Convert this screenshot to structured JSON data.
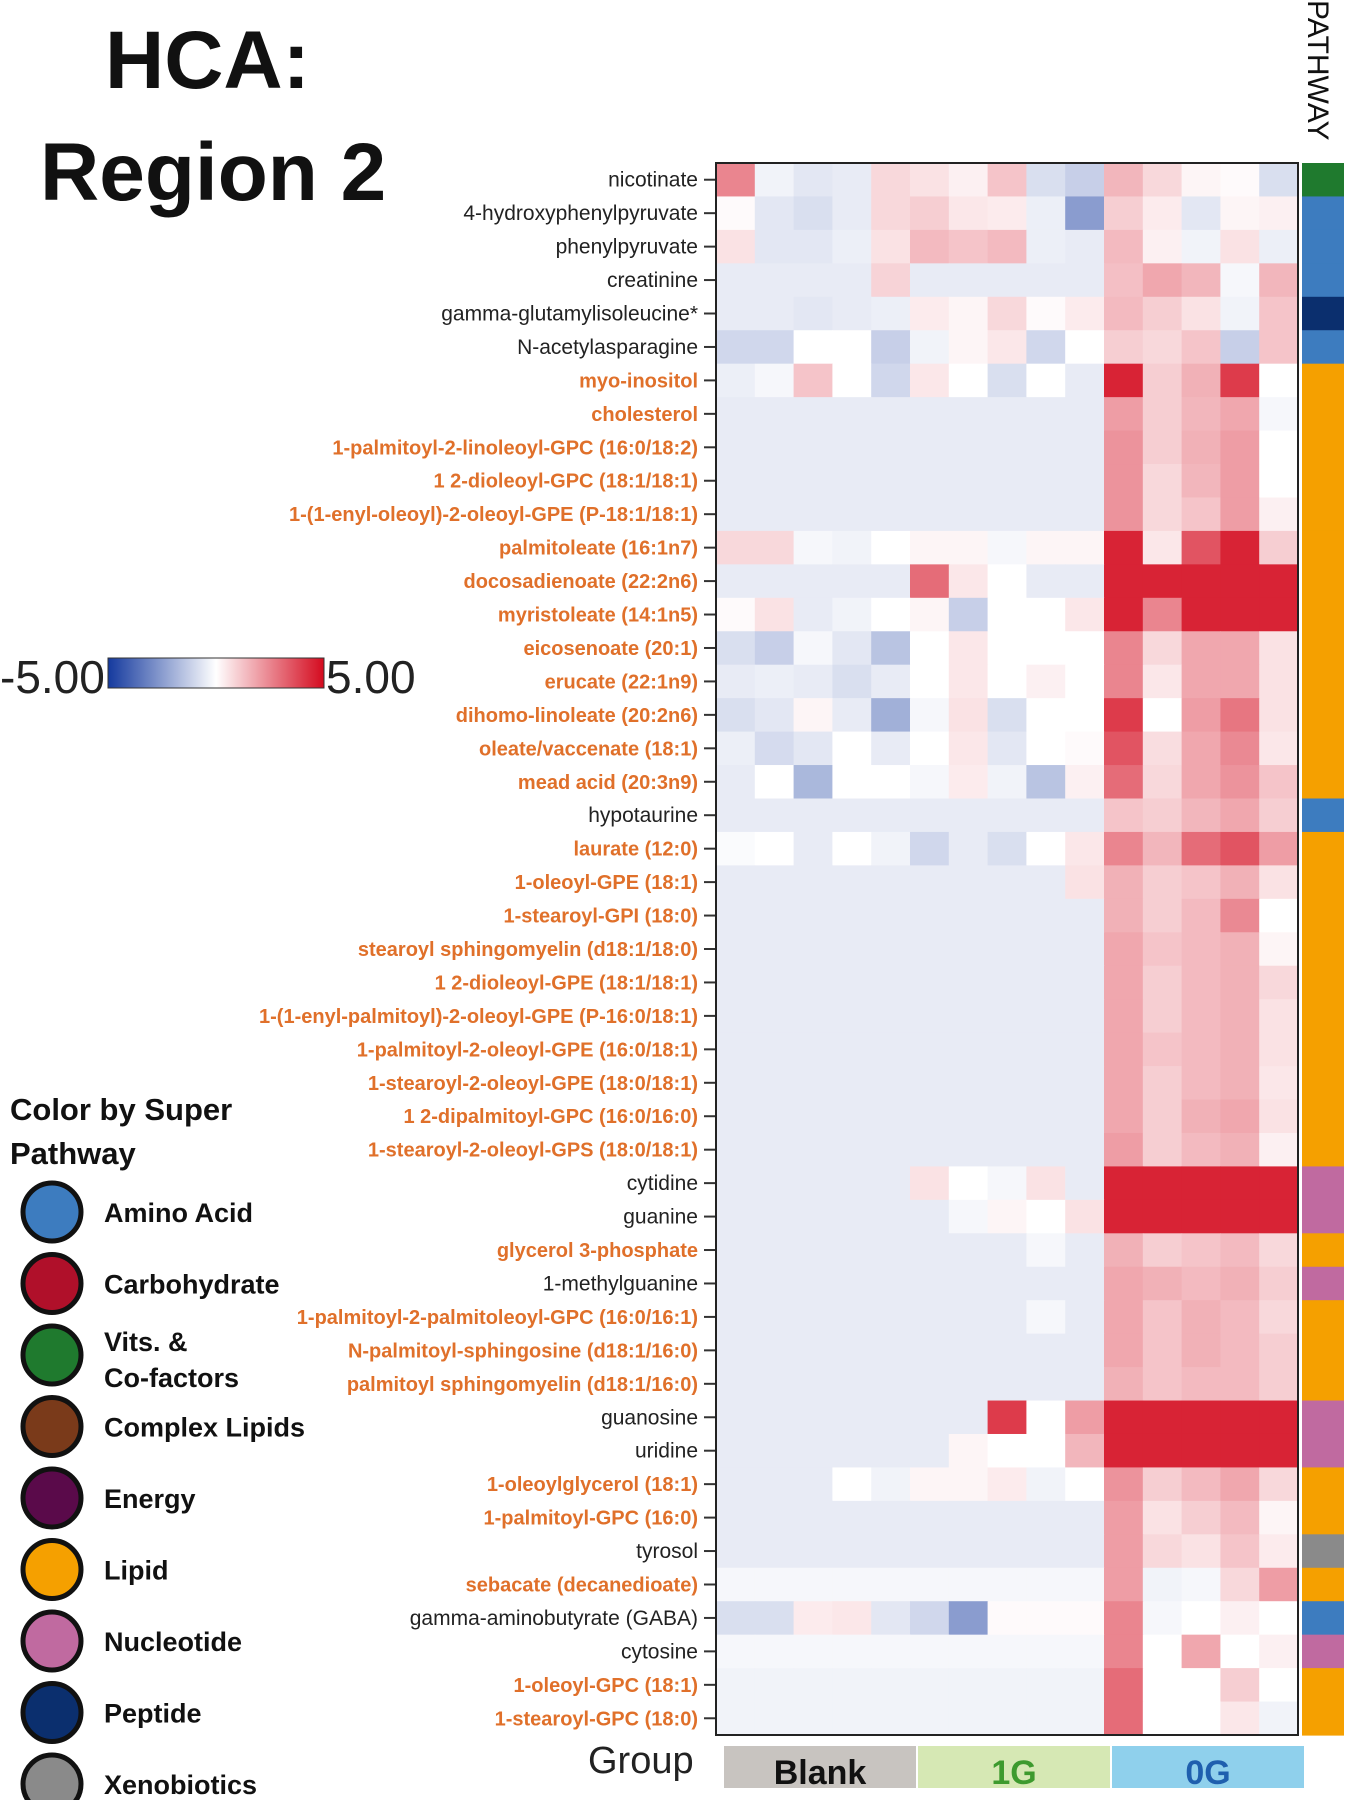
{
  "title_line1": "HCA:",
  "title_line2": "Region 2",
  "pathway_header": "PATHWAY",
  "colorbar": {
    "min_label": "-5.00",
    "max_label": "5.00"
  },
  "legend": {
    "title_line1": "Color by Super",
    "title_line2": "Pathway",
    "items": [
      {
        "label": "Amino Acid",
        "color": "#3d7cbf"
      },
      {
        "label": "Carbohydrate",
        "color": "#b0102a"
      },
      {
        "label": "Vits. &",
        "label2": "Co-factors",
        "color": "#1f7a2e"
      },
      {
        "label": "Complex Lipids",
        "color": "#7a3a1a"
      },
      {
        "label": "Energy",
        "color": "#5a0a4a"
      },
      {
        "label": "Lipid",
        "color": "#f5a000"
      },
      {
        "label": "Nucleotide",
        "color": "#c06aa0"
      },
      {
        "label": "Peptide",
        "color": "#0b2f6e"
      },
      {
        "label": "Xenobiotics",
        "color": "#8a8a8a"
      }
    ]
  },
  "group": {
    "label": "Group",
    "groups": [
      {
        "label": "Blank",
        "color": "#c8c4c0",
        "text_color": "#111111"
      },
      {
        "label": "1G",
        "color": "#d6e8b4",
        "text_color": "#3d9a2e"
      },
      {
        "label": "0G",
        "color": "#8fd0ec",
        "text_color": "#1f5fae"
      }
    ]
  },
  "chart_data": {
    "type": "heatmap",
    "value_range": [
      -5,
      5
    ],
    "columns_per_group": [
      5,
      5,
      5
    ],
    "rows": [
      {
        "label": "nicotinate",
        "pathway": "Vits. & Co-factors",
        "values": [
          2.5,
          -0.3,
          -0.6,
          -0.5,
          0.8,
          0.6,
          0.3,
          1.2,
          -0.8,
          -1.2,
          1.5,
          0.8,
          0.2,
          0.1,
          -0.8
        ]
      },
      {
        "label": "4-hydroxyphenylpyruvate",
        "pathway": "Amino Acid",
        "values": [
          0.1,
          -0.6,
          -0.8,
          -0.5,
          0.8,
          1.0,
          0.5,
          0.4,
          -0.4,
          -2.5,
          1.0,
          0.4,
          -0.6,
          0.2,
          0.3
        ]
      },
      {
        "label": "phenylpyruvate",
        "pathway": "Amino Acid",
        "values": [
          0.6,
          -0.6,
          -0.6,
          -0.4,
          0.6,
          1.4,
          1.2,
          1.4,
          -0.4,
          -0.5,
          1.4,
          0.3,
          -0.3,
          0.6,
          -0.4
        ]
      },
      {
        "label": "creatinine",
        "pathway": "Amino Acid",
        "values": [
          -0.5,
          -0.5,
          -0.5,
          -0.5,
          0.9,
          -0.5,
          -0.5,
          -0.5,
          -0.5,
          -0.5,
          1.3,
          1.8,
          1.5,
          -0.2,
          1.5
        ]
      },
      {
        "label": "gamma-glutamylisoleucine*",
        "pathway": "Peptide",
        "values": [
          -0.5,
          -0.5,
          -0.6,
          -0.5,
          -0.4,
          0.4,
          0.2,
          0.8,
          0.1,
          0.4,
          1.4,
          1.0,
          0.6,
          -0.3,
          1.2
        ]
      },
      {
        "label": "N-acetylasparagine",
        "pathway": "Amino Acid",
        "values": [
          -1.0,
          -1.0,
          0.0,
          0.0,
          -1.2,
          -0.3,
          0.2,
          0.5,
          -1.0,
          0.0,
          1.0,
          0.8,
          1.2,
          -1.2,
          1.2
        ]
      },
      {
        "label": "myo-inositol",
        "pathway": "Lipid",
        "values": [
          -0.4,
          -0.2,
          1.2,
          0.0,
          -1.0,
          0.5,
          0.0,
          -0.8,
          0.0,
          -0.5,
          4.5,
          1.0,
          1.6,
          4.0,
          0.0
        ]
      },
      {
        "label": "cholesterol",
        "pathway": "Lipid",
        "values": [
          -0.5,
          -0.5,
          -0.5,
          -0.5,
          -0.5,
          -0.5,
          -0.5,
          -0.5,
          -0.5,
          -0.5,
          2.0,
          1.0,
          1.5,
          1.8,
          -0.2
        ]
      },
      {
        "label": "1-palmitoyl-2-linoleoyl-GPC (16:0/18:2)",
        "pathway": "Lipid",
        "values": [
          -0.5,
          -0.5,
          -0.5,
          -0.5,
          -0.5,
          -0.5,
          -0.5,
          -0.5,
          -0.5,
          -0.5,
          2.2,
          1.0,
          1.6,
          2.0,
          0.0
        ]
      },
      {
        "label": "1 2-dioleoyl-GPC (18:1/18:1)",
        "pathway": "Lipid",
        "values": [
          -0.5,
          -0.5,
          -0.5,
          -0.5,
          -0.5,
          -0.5,
          -0.5,
          -0.5,
          -0.5,
          -0.5,
          2.2,
          0.8,
          1.5,
          2.0,
          0.0
        ]
      },
      {
        "label": "1-(1-enyl-oleoyl)-2-oleoyl-GPE (P-18:1/18:1)",
        "pathway": "Lipid",
        "values": [
          -0.5,
          -0.5,
          -0.5,
          -0.5,
          -0.5,
          -0.5,
          -0.5,
          -0.5,
          -0.5,
          -0.5,
          2.2,
          0.8,
          1.2,
          2.0,
          0.3
        ]
      },
      {
        "label": "palmitoleate (16:1n7)",
        "pathway": "Lipid",
        "values": [
          0.8,
          0.8,
          -0.2,
          -0.3,
          0.0,
          0.2,
          0.2,
          -0.2,
          0.2,
          0.2,
          4.5,
          0.5,
          3.5,
          4.5,
          1.0
        ]
      },
      {
        "label": "docosadienoate (22:2n6)",
        "pathway": "Lipid",
        "values": [
          -0.5,
          -0.5,
          -0.5,
          -0.5,
          -0.5,
          3.0,
          0.5,
          0.0,
          -0.5,
          -0.5,
          4.5,
          4.5,
          4.5,
          4.5,
          4.5
        ]
      },
      {
        "label": "myristoleate (14:1n5)",
        "pathway": "Lipid",
        "values": [
          0.1,
          0.6,
          -0.5,
          -0.3,
          0.0,
          0.2,
          -1.2,
          0.0,
          0.0,
          0.5,
          4.5,
          2.5,
          4.5,
          4.5,
          4.5
        ]
      },
      {
        "label": "eicosenoate (20:1)",
        "pathway": "Lipid",
        "values": [
          -0.8,
          -1.2,
          -0.2,
          -0.6,
          -1.5,
          0.0,
          0.5,
          0.0,
          0.0,
          0.0,
          2.5,
          0.8,
          1.8,
          1.8,
          0.6
        ]
      },
      {
        "label": "erucate (22:1n9)",
        "pathway": "Lipid",
        "values": [
          -0.5,
          -0.4,
          -0.5,
          -0.8,
          -0.5,
          0.0,
          0.5,
          0.0,
          0.3,
          0.0,
          2.5,
          0.5,
          1.8,
          1.8,
          0.6
        ]
      },
      {
        "label": "dihomo-linoleate (20:2n6)",
        "pathway": "Lipid",
        "values": [
          -0.8,
          -0.6,
          0.2,
          -0.5,
          -2.0,
          -0.2,
          0.6,
          -0.8,
          0.0,
          0.0,
          4.0,
          0.0,
          2.0,
          2.8,
          0.6
        ]
      },
      {
        "label": "oleate/vaccenate (18:1)",
        "pathway": "Lipid",
        "values": [
          -0.4,
          -0.9,
          -0.6,
          0.0,
          -0.5,
          0.0,
          0.5,
          -0.6,
          0.0,
          0.1,
          3.5,
          0.7,
          1.8,
          2.4,
          0.5
        ]
      },
      {
        "label": "mead acid (20:3n9)",
        "pathway": "Lipid",
        "values": [
          -0.5,
          0.0,
          -1.8,
          0.0,
          0.0,
          -0.2,
          0.4,
          -0.3,
          -1.5,
          0.3,
          3.0,
          0.8,
          1.8,
          2.2,
          1.2
        ]
      },
      {
        "label": "hypotaurine",
        "pathway": "Amino Acid",
        "values": [
          -0.5,
          -0.5,
          -0.5,
          -0.5,
          -0.5,
          -0.5,
          -0.5,
          -0.5,
          -0.5,
          -0.5,
          1.2,
          1.0,
          1.5,
          1.8,
          1.0
        ]
      },
      {
        "label": "laurate (12:0)",
        "pathway": "Lipid",
        "values": [
          -0.1,
          0.0,
          -0.5,
          0.0,
          -0.3,
          -1.0,
          -0.5,
          -0.8,
          0.0,
          0.5,
          2.5,
          1.5,
          3.0,
          3.5,
          2.0
        ]
      },
      {
        "label": "1-oleoyl-GPE (18:1)",
        "pathway": "Lipid",
        "values": [
          -0.5,
          -0.5,
          -0.5,
          -0.5,
          -0.5,
          -0.5,
          -0.5,
          -0.5,
          -0.5,
          0.6,
          1.6,
          1.0,
          1.2,
          1.6,
          0.6
        ]
      },
      {
        "label": "1-stearoyl-GPI (18:0)",
        "pathway": "Lipid",
        "values": [
          -0.5,
          -0.5,
          -0.5,
          -0.5,
          -0.5,
          -0.5,
          -0.5,
          -0.5,
          -0.5,
          -0.5,
          1.6,
          1.0,
          1.4,
          2.4,
          0.0
        ]
      },
      {
        "label": "stearoyl sphingomyelin (d18:1/18:0)",
        "pathway": "Lipid",
        "values": [
          -0.5,
          -0.5,
          -0.5,
          -0.5,
          -0.5,
          -0.5,
          -0.5,
          -0.5,
          -0.5,
          -0.5,
          1.8,
          1.2,
          1.4,
          1.6,
          0.2
        ]
      },
      {
        "label": "1 2-dioleoyl-GPE (18:1/18:1)",
        "pathway": "Lipid",
        "values": [
          -0.5,
          -0.5,
          -0.5,
          -0.5,
          -0.5,
          -0.5,
          -0.5,
          -0.5,
          -0.5,
          -0.5,
          1.8,
          1.0,
          1.4,
          1.6,
          0.8
        ]
      },
      {
        "label": "1-(1-enyl-palmitoyl)-2-oleoyl-GPE (P-16:0/18:1)",
        "pathway": "Lipid",
        "values": [
          -0.5,
          -0.5,
          -0.5,
          -0.5,
          -0.5,
          -0.5,
          -0.5,
          -0.5,
          -0.5,
          -0.5,
          1.8,
          1.0,
          1.4,
          1.6,
          0.6
        ]
      },
      {
        "label": "1-palmitoyl-2-oleoyl-GPE (16:0/18:1)",
        "pathway": "Lipid",
        "values": [
          -0.5,
          -0.5,
          -0.5,
          -0.5,
          -0.5,
          -0.5,
          -0.5,
          -0.5,
          -0.5,
          -0.5,
          1.8,
          1.2,
          1.4,
          1.6,
          0.6
        ]
      },
      {
        "label": "1-stearoyl-2-oleoyl-GPE (18:0/18:1)",
        "pathway": "Lipid",
        "values": [
          -0.5,
          -0.5,
          -0.5,
          -0.5,
          -0.5,
          -0.5,
          -0.5,
          -0.5,
          -0.5,
          -0.5,
          1.8,
          1.0,
          1.4,
          1.6,
          0.5
        ]
      },
      {
        "label": "1 2-dipalmitoyl-GPC (16:0/16:0)",
        "pathway": "Lipid",
        "values": [
          -0.5,
          -0.5,
          -0.5,
          -0.5,
          -0.5,
          -0.5,
          -0.5,
          -0.5,
          -0.5,
          -0.5,
          1.8,
          1.0,
          1.6,
          1.8,
          0.6
        ]
      },
      {
        "label": "1-stearoyl-2-oleoyl-GPS (18:0/18:1)",
        "pathway": "Lipid",
        "values": [
          -0.5,
          -0.5,
          -0.5,
          -0.5,
          -0.5,
          -0.5,
          -0.5,
          -0.5,
          -0.5,
          -0.5,
          2.0,
          1.0,
          1.4,
          1.6,
          0.3
        ]
      },
      {
        "label": "cytidine",
        "pathway": "Nucleotide",
        "values": [
          -0.5,
          -0.5,
          -0.5,
          -0.5,
          -0.5,
          0.6,
          0.0,
          -0.2,
          0.6,
          -0.5,
          4.5,
          4.5,
          4.5,
          4.5,
          4.5
        ]
      },
      {
        "label": "guanine",
        "pathway": "Nucleotide",
        "values": [
          -0.5,
          -0.5,
          -0.5,
          -0.5,
          -0.5,
          -0.5,
          -0.2,
          0.2,
          0.0,
          0.6,
          4.5,
          4.5,
          4.5,
          4.5,
          4.5
        ]
      },
      {
        "label": "glycerol 3-phosphate",
        "pathway": "Lipid",
        "values": [
          -0.5,
          -0.5,
          -0.5,
          -0.5,
          -0.5,
          -0.5,
          -0.5,
          -0.5,
          -0.2,
          -0.5,
          1.6,
          1.0,
          1.2,
          1.4,
          0.8
        ]
      },
      {
        "label": "1-methylguanine",
        "pathway": "Nucleotide",
        "values": [
          -0.5,
          -0.5,
          -0.5,
          -0.5,
          -0.5,
          -0.5,
          -0.5,
          -0.5,
          -0.5,
          -0.5,
          1.8,
          1.6,
          1.4,
          1.6,
          1.0
        ]
      },
      {
        "label": "1-palmitoyl-2-palmitoleoyl-GPC (16:0/16:1)",
        "pathway": "Lipid",
        "values": [
          -0.5,
          -0.5,
          -0.5,
          -0.5,
          -0.5,
          -0.5,
          -0.5,
          -0.5,
          -0.2,
          -0.5,
          1.8,
          1.2,
          1.6,
          1.4,
          0.8
        ]
      },
      {
        "label": "N-palmitoyl-sphingosine (d18:1/16:0)",
        "pathway": "Lipid",
        "values": [
          -0.5,
          -0.5,
          -0.5,
          -0.5,
          -0.5,
          -0.5,
          -0.5,
          -0.5,
          -0.5,
          -0.5,
          1.8,
          1.2,
          1.6,
          1.4,
          1.0
        ]
      },
      {
        "label": "palmitoyl sphingomyelin (d18:1/16:0)",
        "pathway": "Lipid",
        "values": [
          -0.5,
          -0.5,
          -0.5,
          -0.5,
          -0.5,
          -0.5,
          -0.5,
          -0.5,
          -0.5,
          -0.5,
          1.6,
          1.2,
          1.4,
          1.4,
          1.0
        ]
      },
      {
        "label": "guanosine",
        "pathway": "Nucleotide",
        "values": [
          -0.5,
          -0.5,
          -0.5,
          -0.5,
          -0.5,
          -0.5,
          -0.5,
          4.0,
          0.0,
          2.0,
          4.5,
          4.5,
          4.5,
          4.5,
          4.5
        ]
      },
      {
        "label": "uridine",
        "pathway": "Nucleotide",
        "values": [
          -0.5,
          -0.5,
          -0.5,
          -0.5,
          -0.5,
          -0.5,
          0.2,
          0.0,
          0.0,
          1.5,
          4.5,
          4.5,
          4.5,
          4.5,
          4.5
        ]
      },
      {
        "label": "1-oleoylglycerol (18:1)",
        "pathway": "Lipid",
        "values": [
          -0.5,
          -0.5,
          -0.5,
          0.0,
          -0.3,
          0.2,
          0.2,
          0.4,
          -0.3,
          0.0,
          2.2,
          1.0,
          1.4,
          1.8,
          0.8
        ]
      },
      {
        "label": "1-palmitoyl-GPC (16:0)",
        "pathway": "Lipid",
        "values": [
          -0.5,
          -0.5,
          -0.5,
          -0.5,
          -0.5,
          -0.5,
          -0.5,
          -0.5,
          -0.5,
          -0.5,
          2.0,
          0.6,
          1.0,
          1.4,
          0.2
        ]
      },
      {
        "label": "tyrosol",
        "pathway": "Xenobiotics",
        "values": [
          -0.5,
          -0.5,
          -0.5,
          -0.5,
          -0.5,
          -0.5,
          -0.5,
          -0.5,
          -0.5,
          -0.5,
          2.0,
          0.8,
          0.6,
          1.2,
          0.4
        ]
      },
      {
        "label": "sebacate (decanedioate)",
        "pathway": "Lipid",
        "values": [
          -0.2,
          -0.2,
          -0.2,
          -0.2,
          -0.2,
          -0.2,
          -0.2,
          -0.2,
          -0.2,
          -0.2,
          2.0,
          -0.3,
          -0.2,
          0.8,
          2.0
        ]
      },
      {
        "label": "gamma-aminobutyrate (GABA)",
        "pathway": "Amino Acid",
        "values": [
          -0.8,
          -0.8,
          0.4,
          0.5,
          -0.6,
          -1.0,
          -2.5,
          0.1,
          0.1,
          0.1,
          2.5,
          -0.2,
          0.0,
          0.3,
          0.0
        ]
      },
      {
        "label": "cytosine",
        "pathway": "Nucleotide",
        "values": [
          -0.2,
          -0.2,
          -0.2,
          -0.2,
          -0.2,
          -0.2,
          -0.2,
          -0.2,
          -0.2,
          -0.2,
          2.5,
          0.0,
          1.8,
          0.0,
          0.3
        ]
      },
      {
        "label": "1-oleoyl-GPC (18:1)",
        "pathway": "Lipid",
        "values": [
          -0.3,
          -0.3,
          -0.3,
          -0.3,
          -0.3,
          -0.3,
          -0.3,
          -0.3,
          -0.3,
          -0.3,
          3.0,
          0.0,
          0.0,
          1.0,
          0.0
        ]
      },
      {
        "label": "1-stearoyl-GPC (18:0)",
        "pathway": "Lipid",
        "values": [
          -0.3,
          -0.3,
          -0.3,
          -0.3,
          -0.3,
          -0.3,
          -0.3,
          -0.3,
          -0.3,
          -0.3,
          3.0,
          0.0,
          0.0,
          0.5,
          -0.3
        ]
      }
    ]
  }
}
